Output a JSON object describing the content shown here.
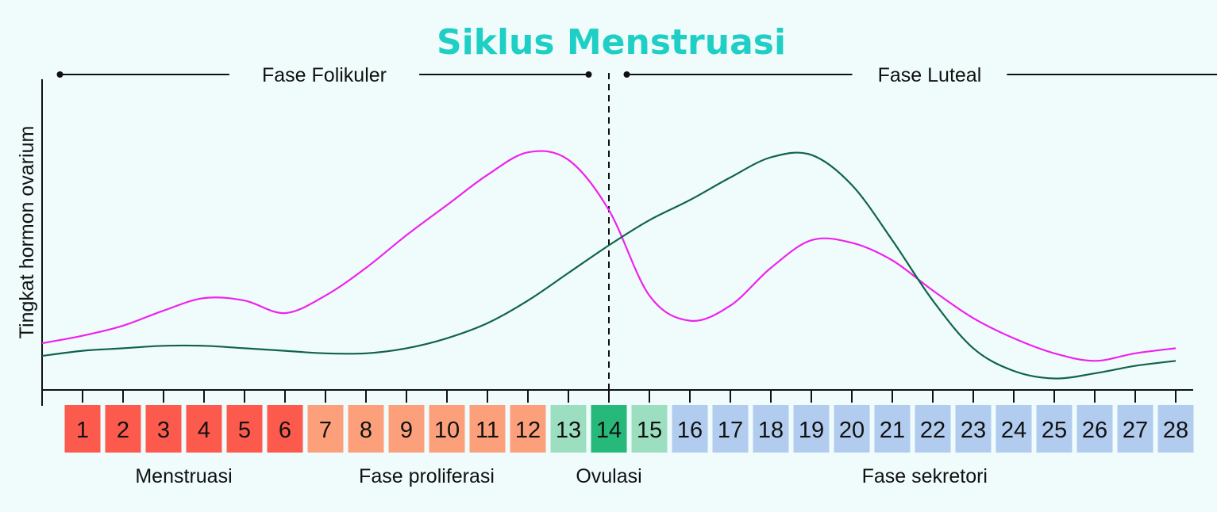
{
  "chart_data": {
    "type": "line",
    "title": "Siklus Menstruasi",
    "ylabel": "Tingkat hormon ovarium",
    "xlabel": "",
    "x": [
      1,
      2,
      3,
      4,
      5,
      6,
      7,
      8,
      9,
      10,
      11,
      12,
      13,
      14,
      15,
      16,
      17,
      18,
      19,
      20,
      21,
      22,
      23,
      24,
      25,
      26,
      27,
      28
    ],
    "xlim": [
      0,
      29
    ],
    "ylim": [
      0,
      100
    ],
    "grid": false,
    "phases": [
      {
        "label": "Fase Folikuler",
        "from_day": 0.5,
        "to_day": 13.5
      },
      {
        "label": "Fase Luteal",
        "from_day": 14.5,
        "to_day": 29.4
      }
    ],
    "ovulation_day": 14,
    "series": [
      {
        "color": "#ee22ee",
        "x": [
          0,
          1,
          2,
          3,
          4,
          5,
          6,
          7,
          8,
          9,
          10,
          11,
          12,
          13,
          14,
          15,
          16,
          17,
          18,
          19,
          20,
          21,
          22,
          23,
          24,
          25,
          26,
          27,
          28
        ],
        "values": [
          17,
          20,
          24,
          30,
          35,
          34,
          29,
          36,
          47,
          60,
          72,
          84,
          93,
          90,
          70,
          36,
          26,
          32,
          47,
          58,
          57,
          50,
          38,
          27,
          19,
          13,
          10,
          13,
          15
        ]
      },
      {
        "color": "#12634a",
        "x": [
          0,
          1,
          2,
          3,
          4,
          5,
          6,
          7,
          8,
          9,
          10,
          11,
          12,
          13,
          14,
          15,
          16,
          17,
          18,
          19,
          20,
          21,
          22,
          23,
          24,
          25,
          26,
          27,
          28
        ],
        "values": [
          12,
          14,
          15,
          16,
          16,
          15,
          14,
          13,
          13,
          15,
          19,
          25,
          34,
          45,
          56,
          66,
          74,
          83,
          91,
          92,
          80,
          58,
          34,
          15,
          6,
          3,
          5,
          8,
          10
        ]
      }
    ],
    "days": [
      {
        "day": "1",
        "stage": 0
      },
      {
        "day": "2",
        "stage": 0
      },
      {
        "day": "3",
        "stage": 0
      },
      {
        "day": "4",
        "stage": 0
      },
      {
        "day": "5",
        "stage": 0
      },
      {
        "day": "6",
        "stage": 0
      },
      {
        "day": "7",
        "stage": 1
      },
      {
        "day": "8",
        "stage": 1
      },
      {
        "day": "9",
        "stage": 1
      },
      {
        "day": "10",
        "stage": 1
      },
      {
        "day": "11",
        "stage": 1
      },
      {
        "day": "12",
        "stage": 1
      },
      {
        "day": "13",
        "stage": 2
      },
      {
        "day": "14",
        "stage": 3
      },
      {
        "day": "15",
        "stage": 2
      },
      {
        "day": "16",
        "stage": 4
      },
      {
        "day": "17",
        "stage": 4
      },
      {
        "day": "18",
        "stage": 4
      },
      {
        "day": "19",
        "stage": 4
      },
      {
        "day": "20",
        "stage": 4
      },
      {
        "day": "21",
        "stage": 4
      },
      {
        "day": "22",
        "stage": 4
      },
      {
        "day": "23",
        "stage": 4
      },
      {
        "day": "24",
        "stage": 4
      },
      {
        "day": "25",
        "stage": 4
      },
      {
        "day": "26",
        "stage": 4
      },
      {
        "day": "27",
        "stage": 4
      },
      {
        "day": "28",
        "stage": 4
      }
    ],
    "stage_colors": [
      "#fc5a4d",
      "#fca07c",
      "#9cdfc0",
      "#27b97a",
      "#b1ccee"
    ],
    "stage_labels": [
      {
        "label": "Menstruasi",
        "center_day": 3.5
      },
      {
        "label": "Fase proliferasi",
        "center_day": 9.5
      },
      {
        "label": "Ovulasi",
        "center_day": 14
      },
      {
        "label": "Fase sekretori",
        "center_day": 21.8
      }
    ],
    "colors": {
      "title": "#1fcfc5",
      "axis": "#111111",
      "background": "#f0fcfb"
    }
  }
}
